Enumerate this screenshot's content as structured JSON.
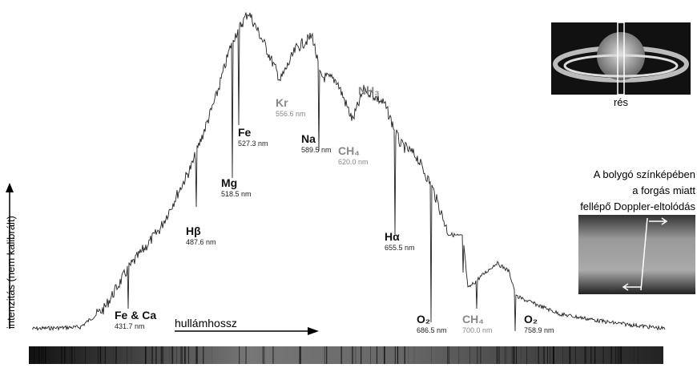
{
  "y_axis_label": "intenzitás (nem kalibrált)",
  "x_axis_label": "hullámhossz",
  "lines": [
    {
      "name": "Fe & Ca",
      "wavelength": "431.7 nm"
    },
    {
      "name": "Hβ",
      "wavelength": "487.6 nm"
    },
    {
      "name": "Mg",
      "wavelength": "518.5 nm"
    },
    {
      "name": "Fe",
      "wavelength": "527.3 nm"
    },
    {
      "name": "Kr",
      "wavelength": "556.6 nm"
    },
    {
      "name": "Na",
      "wavelength": "589.5 nm"
    },
    {
      "name": "CH₄",
      "wavelength": "620.0 nm"
    },
    {
      "name": "NH₃"
    },
    {
      "name": "Hα",
      "wavelength": "655.5 nm"
    },
    {
      "name": "O₂",
      "wavelength": "686.5 nm"
    },
    {
      "name": "CH₄",
      "wavelength": "700.0 nm"
    },
    {
      "name": "O₂",
      "wavelength": "758.9 nm"
    }
  ],
  "saturn_caption": "rés",
  "doppler_caption": [
    "A bolygó színképében",
    "a forgás miatt",
    "fellépő Doppler-eltolódás"
  ]
}
